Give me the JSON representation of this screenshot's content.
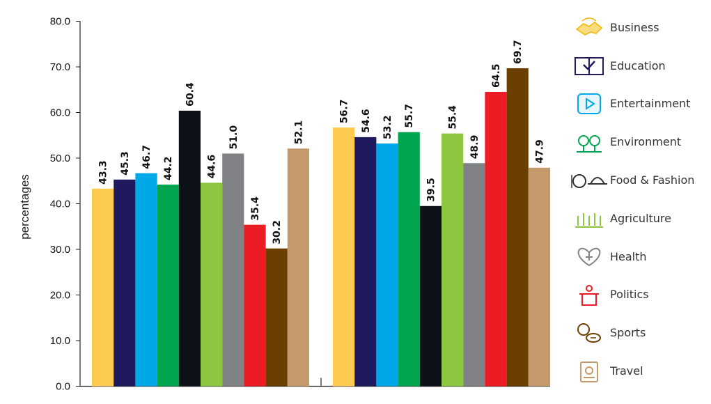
{
  "chart_data": {
    "type": "bar",
    "ylabel": "percentages",
    "ylim": [
      0,
      80
    ],
    "yticks": [
      "0.0",
      "10.0",
      "20.0",
      "30.0",
      "40.0",
      "50.0",
      "60.0",
      "70.0",
      "80.0"
    ],
    "categories": [
      "",
      ""
    ],
    "series": [
      {
        "name": "Business",
        "color": "#FDCB4F",
        "icon": "handshake-icon",
        "values": [
          43.3,
          56.7
        ]
      },
      {
        "name": "Education",
        "color": "#1F1A5E",
        "icon": "book-icon",
        "values": [
          45.3,
          54.6
        ]
      },
      {
        "name": "Entertainment",
        "color": "#00A8E8",
        "icon": "play-screen-icon",
        "values": [
          46.7,
          53.2
        ]
      },
      {
        "name": "Environment",
        "color": "#00A550",
        "icon": "trees-icon",
        "values": [
          44.2,
          55.7
        ]
      },
      {
        "name": "Food & Fashion",
        "color": "#0B1117",
        "icon": "plate-and-hat-icon",
        "values": [
          60.4,
          39.5
        ]
      },
      {
        "name": "Agriculture",
        "color": "#8DC63F",
        "icon": "crops-icon",
        "values": [
          44.6,
          55.4
        ]
      },
      {
        "name": "Health",
        "color": "#808285",
        "icon": "heart-plus-icon",
        "values": [
          51.0,
          48.9
        ]
      },
      {
        "name": "Politics",
        "color": "#ED1C24",
        "icon": "podium-icon",
        "values": [
          35.4,
          64.5
        ]
      },
      {
        "name": "Sports",
        "color": "#6B3F00",
        "icon": "balls-icon",
        "values": [
          30.2,
          69.7
        ]
      },
      {
        "name": "Travel",
        "color": "#C49A6C",
        "icon": "passport-icon",
        "values": [
          52.1,
          47.9
        ]
      }
    ],
    "legend_position": "right",
    "grid": false
  }
}
